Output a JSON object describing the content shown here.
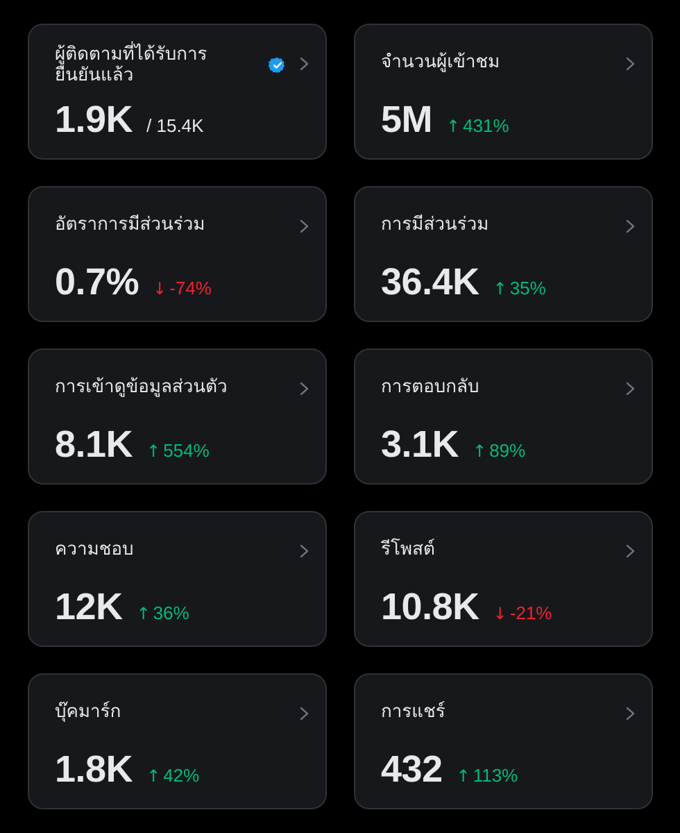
{
  "colors": {
    "background": "#000000",
    "card": "#16181c",
    "border": "#2f3336",
    "text": "#e7e9ea",
    "up": "#00ba7c",
    "down": "#f4212e",
    "verified": "#1d9bf0"
  },
  "cards": [
    {
      "title": "ผู้ติดตามที่ได้รับการยืนยันแล้ว",
      "value": "1.9K",
      "secondary": "/ 15.4K",
      "verified_icon": "verified-badge-icon"
    },
    {
      "title": "จำนวนผู้เข้าชม",
      "value": "5M",
      "arrow": "↑",
      "change": "431%",
      "direction": "up"
    },
    {
      "title": "อัตราการมีส่วนร่วม",
      "value": "0.7%",
      "arrow": "↓",
      "change": "-74%",
      "direction": "down"
    },
    {
      "title": "การมีส่วนร่วม",
      "value": "36.4K",
      "arrow": "↑",
      "change": "35%",
      "direction": "up"
    },
    {
      "title": "การเข้าดูข้อมูลส่วนตัว",
      "value": "8.1K",
      "arrow": "↑",
      "change": "554%",
      "direction": "up"
    },
    {
      "title": "การตอบกลับ",
      "value": "3.1K",
      "arrow": "↑",
      "change": "89%",
      "direction": "up"
    },
    {
      "title": "ความชอบ",
      "value": "12K",
      "arrow": "↑",
      "change": "36%",
      "direction": "up"
    },
    {
      "title": "รีโพสต์",
      "value": "10.8K",
      "arrow": "↓",
      "change": "-21%",
      "direction": "down"
    },
    {
      "title": "บุ๊คมาร์ก",
      "value": "1.8K",
      "arrow": "↑",
      "change": "42%",
      "direction": "up"
    },
    {
      "title": "การแชร์",
      "value": "432",
      "arrow": "↑",
      "change": "113%",
      "direction": "up"
    }
  ]
}
